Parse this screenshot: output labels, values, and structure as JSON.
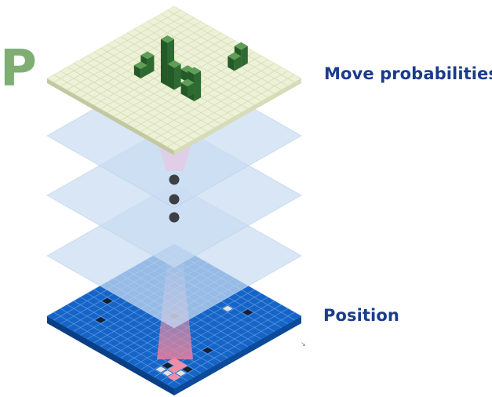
{
  "diagram": {
    "policy_letter": "P",
    "top_label": "Move probabilities",
    "bottom_label": "Position"
  },
  "colors": {
    "letter": "#7fae73",
    "label": "#1b3c8c",
    "top_plane": "#edf1d5",
    "top_plane_side": "#d6dcb8",
    "top_grid": "#d2d8b6",
    "hidden_plane": "#c9dcf1",
    "board": "#1565c8",
    "board_side": "#0c4a9a",
    "board_grid": "#5f98e0",
    "stone_black": "#1a1f2c",
    "stone_white": "#e3e3e3",
    "highlight": "#ef8fa6",
    "dots": "#3c3f45",
    "bar_dark": "#2f6a32",
    "bar_light": "#5f9e57"
  }
}
